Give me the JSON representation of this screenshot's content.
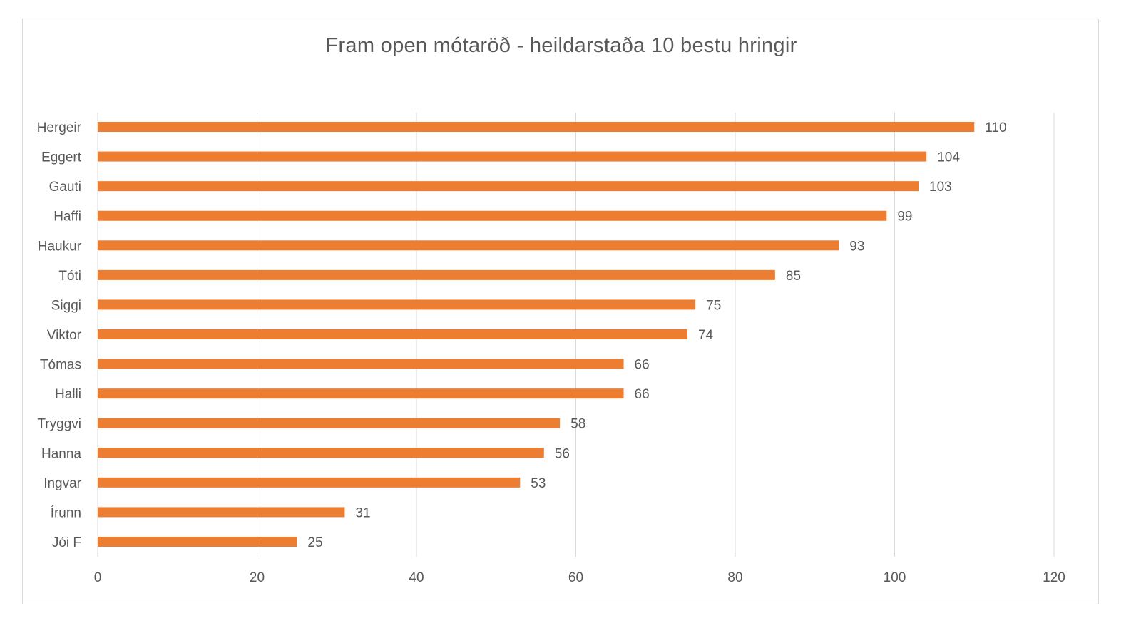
{
  "chart_data": {
    "type": "bar",
    "orientation": "horizontal",
    "title": "Fram open mótaröð - heildarstaða 10 bestu hringir",
    "categories": [
      "Hergeir",
      "Eggert",
      "Gauti",
      "Haffi",
      "Haukur",
      "Tóti",
      "Siggi",
      "Viktor",
      "Tómas",
      "Halli",
      "Tryggvi",
      "Hanna",
      "Ingvar",
      "Írunn",
      "Jói F"
    ],
    "values": [
      110,
      104,
      103,
      99,
      93,
      85,
      75,
      74,
      66,
      66,
      58,
      56,
      53,
      31,
      25
    ],
    "xlim": [
      0,
      120
    ],
    "xticks": [
      0,
      20,
      40,
      60,
      80,
      100,
      120
    ],
    "grid": true,
    "data_labels": true,
    "bar_color": "#ED7D31",
    "xlabel": "",
    "ylabel": ""
  }
}
